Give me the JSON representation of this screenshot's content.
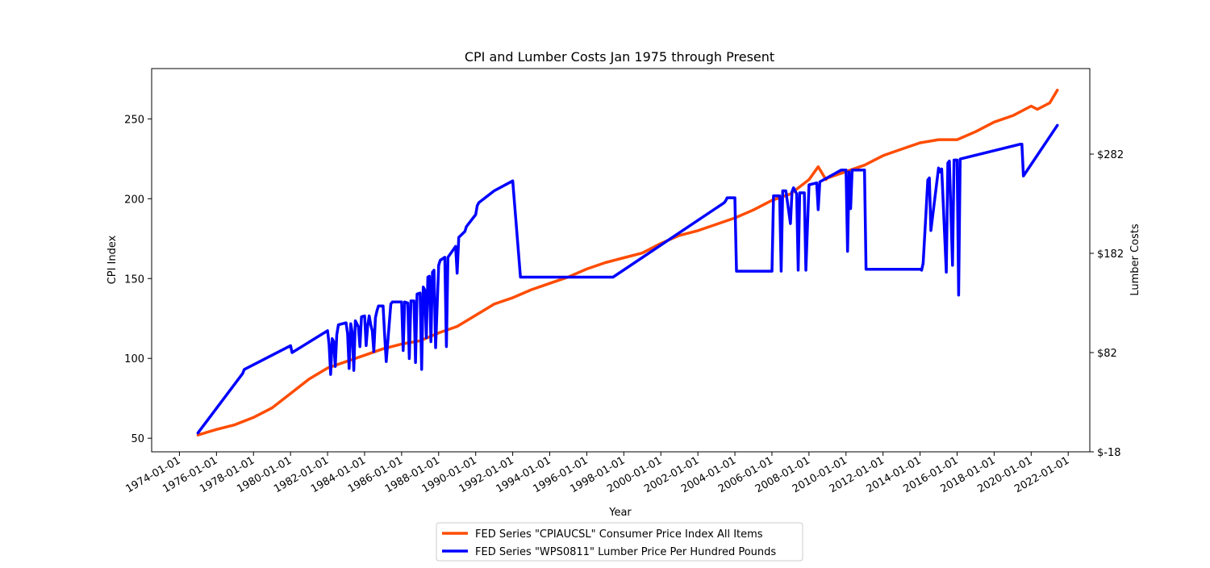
{
  "chart_data": {
    "type": "line",
    "title": "CPI and Lumber Costs Jan 1975 through Present",
    "xlabel": "Year",
    "ylabel_left": "CPI Index",
    "ylabel_right": "Lumber Costs",
    "x_tick_labels": [
      "1974-01-01",
      "1976-01-01",
      "1978-01-01",
      "1980-01-01",
      "1982-01-01",
      "1984-01-01",
      "1986-01-01",
      "1988-01-01",
      "1990-01-01",
      "1992-01-01",
      "1994-01-01",
      "1996-01-01",
      "1998-01-01",
      "2000-01-01",
      "2002-01-01",
      "2004-01-01",
      "2006-01-01",
      "2008-01-01",
      "2010-01-01",
      "2012-01-01",
      "2014-01-01",
      "2016-01-01",
      "2018-01-01",
      "2020-01-01",
      "2022-01-01"
    ],
    "xlim": [
      "1972-07-01",
      "2023-03-01"
    ],
    "y_left_ticks": [
      50,
      100,
      150,
      200,
      250
    ],
    "y_left_lim": [
      41.5,
      281.5
    ],
    "y_right_ticks": [
      -18,
      82,
      182,
      282
    ],
    "y_right_tick_labels": [
      "$-18",
      "$82",
      "$182",
      "$282"
    ],
    "grid": false,
    "legend_position": "below-center",
    "series": [
      {
        "name": "FED Series \"CPIAUCSL\" Consumer Price Index All Items",
        "color": "#ff4c00",
        "axis": "left",
        "x": [
          "1975-01-01",
          "1976-01-01",
          "1977-01-01",
          "1978-01-01",
          "1979-01-01",
          "1980-01-01",
          "1981-01-01",
          "1982-01-01",
          "1983-01-01",
          "1984-01-01",
          "1985-01-01",
          "1986-01-01",
          "1987-01-01",
          "1988-01-01",
          "1989-01-01",
          "1990-01-01",
          "1991-01-01",
          "1992-01-01",
          "1993-01-01",
          "1994-01-01",
          "1995-01-01",
          "1996-01-01",
          "1997-01-01",
          "1998-01-01",
          "1999-01-01",
          "2000-01-01",
          "2001-01-01",
          "2002-01-01",
          "2003-01-01",
          "2004-01-01",
          "2005-01-01",
          "2006-01-01",
          "2007-01-01",
          "2008-01-01",
          "2008-07-01",
          "2008-12-01",
          "2009-01-01",
          "2010-01-01",
          "2011-01-01",
          "2012-01-01",
          "2013-01-01",
          "2014-01-01",
          "2015-01-01",
          "2016-01-01",
          "2017-01-01",
          "2018-01-01",
          "2019-01-01",
          "2020-01-01",
          "2020-05-01",
          "2021-01-01",
          "2021-06-01"
        ],
        "values": [
          52,
          55.5,
          58.5,
          63,
          69,
          78,
          87,
          94,
          98,
          102,
          106,
          109,
          111,
          116,
          120,
          127,
          134,
          138,
          143,
          147,
          151,
          156,
          160,
          163,
          166,
          172,
          177,
          180,
          184,
          188,
          193,
          199,
          203,
          212,
          220,
          212,
          213,
          217,
          221,
          227,
          231,
          235,
          237,
          237,
          242,
          248,
          252,
          258,
          256,
          260,
          268
        ]
      },
      {
        "name": "FED Series \"WPS0811\" Lumber Price Per Hundred Pounds",
        "color": "#0000ff",
        "axis": "right",
        "x": [
          "1975-01-01",
          "1977-06-01",
          "1977-07-01",
          "1980-01-01",
          "1980-02-01",
          "1982-01-01",
          "1982-02-01",
          "1982-03-01",
          "1982-04-01",
          "1982-05-01",
          "1982-06-01",
          "1982-07-01",
          "1982-08-01",
          "1983-01-01",
          "1983-02-01",
          "1983-03-01",
          "1983-04-01",
          "1983-05-01",
          "1983-06-01",
          "1983-07-01",
          "1983-09-01",
          "1983-10-01",
          "1983-11-01",
          "1984-01-01",
          "1984-02-01",
          "1984-03-01",
          "1984-04-01",
          "1984-05-01",
          "1984-06-01",
          "1984-07-01",
          "1984-08-01",
          "1984-09-01",
          "1984-10-01",
          "1985-01-01",
          "1985-02-01",
          "1985-03-01",
          "1985-06-01",
          "1985-07-01",
          "1986-01-01",
          "1986-02-01",
          "1986-03-01",
          "1986-05-01",
          "1986-06-01",
          "1986-07-01",
          "1986-09-01",
          "1986-10-01",
          "1986-11-01",
          "1987-01-01",
          "1987-02-01",
          "1987-03-01",
          "1987-04-01",
          "1987-05-01",
          "1987-06-01",
          "1987-07-01",
          "1987-08-01",
          "1987-09-01",
          "1987-10-01",
          "1987-11-01",
          "1988-01-01",
          "1988-02-01",
          "1988-05-01",
          "1988-06-01",
          "1988-07-01",
          "1988-12-01",
          "1989-01-01",
          "1989-02-01",
          "1989-06-01",
          "1989-07-01",
          "1990-01-01",
          "1990-02-01",
          "1990-03-01",
          "1991-01-01",
          "1992-01-01",
          "1992-06-01",
          "1997-06-01",
          "2003-06-01",
          "2003-07-01",
          "2003-08-01",
          "2004-01-01",
          "2004-02-01",
          "2006-01-01",
          "2006-02-01",
          "2006-06-01",
          "2006-07-01",
          "2006-08-01",
          "2006-10-01",
          "2007-01-01",
          "2007-02-01",
          "2007-03-01",
          "2007-05-01",
          "2007-06-01",
          "2007-07-01",
          "2007-10-01",
          "2007-11-01",
          "2008-01-01",
          "2008-06-01",
          "2008-07-01",
          "2008-08-01",
          "2009-10-01",
          "2010-01-01",
          "2010-02-01",
          "2010-03-01",
          "2010-04-01",
          "2010-05-01",
          "2011-01-01",
          "2011-02-01",
          "2014-01-01",
          "2014-02-01",
          "2014-03-01",
          "2014-06-01",
          "2014-07-01",
          "2014-08-01",
          "2015-01-01",
          "2015-02-01",
          "2015-03-01",
          "2015-06-01",
          "2015-07-01",
          "2015-08-01",
          "2015-10-01",
          "2015-11-01",
          "2016-01-01",
          "2016-02-01",
          "2016-03-01",
          "2019-06-01",
          "2019-07-01",
          "2019-08-01",
          "2021-06-01"
        ],
        "values": [
          1,
          61,
          65,
          89,
          82,
          104,
          90,
          60,
          96,
          93,
          68,
          100,
          110,
          112,
          101,
          66,
          111,
          102,
          64,
          114,
          108,
          88,
          118,
          119,
          89,
          109,
          119,
          110,
          104,
          83,
          117,
          124,
          129,
          129,
          100,
          73,
          131,
          133,
          133,
          84,
          133,
          132,
          76,
          134,
          134,
          72,
          141,
          142,
          65,
          148,
          145,
          97,
          158,
          159,
          93,
          163,
          165,
          87,
          170,
          175,
          178,
          88,
          178,
          189,
          162,
          198,
          204,
          209,
          221,
          230,
          233,
          245,
          255,
          158,
          158,
          233,
          235,
          238,
          238,
          164,
          164,
          240,
          240,
          164,
          245,
          245,
          212,
          244,
          248,
          242,
          165,
          243,
          243,
          165,
          251,
          253,
          226,
          254,
          266,
          266,
          184,
          264,
          227,
          266,
          266,
          166,
          166,
          165,
          172,
          256,
          258,
          205,
          268,
          264,
          267,
          163,
          273,
          275,
          170,
          276,
          276,
          140,
          277,
          292,
          292,
          260,
          311
        ]
      }
    ]
  },
  "legend": {
    "series_1": "FED Series \"CPIAUCSL\" Consumer Price Index All Items",
    "series_2": "FED Series \"WPS0811\" Lumber Price Per Hundred Pounds"
  }
}
